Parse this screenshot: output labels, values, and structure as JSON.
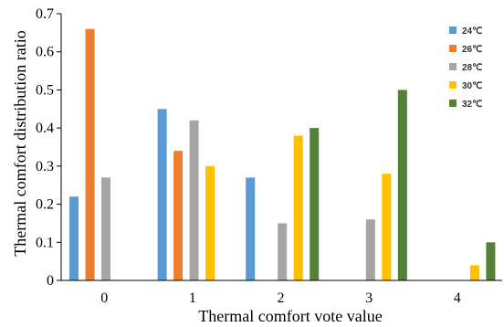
{
  "chart_data": {
    "type": "bar",
    "categories": [
      "0",
      "1",
      "2",
      "3",
      "4"
    ],
    "series": [
      {
        "name": "24℃",
        "color": "#5b9bd5",
        "values": [
          0.22,
          0.45,
          0.27,
          null,
          null
        ]
      },
      {
        "name": "26℃",
        "color": "#ed7d31",
        "values": [
          0.66,
          0.34,
          null,
          null,
          null
        ]
      },
      {
        "name": "28℃",
        "color": "#a5a5a5",
        "values": [
          0.27,
          0.42,
          0.15,
          0.16,
          null
        ]
      },
      {
        "name": "30℃",
        "color": "#ffc000",
        "values": [
          null,
          0.3,
          0.38,
          0.28,
          0.04
        ]
      },
      {
        "name": "32℃",
        "color": "#548235",
        "values": [
          null,
          null,
          0.4,
          0.5,
          0.1
        ]
      }
    ],
    "xlabel": "Thermal comfort vote value",
    "ylabel": "Thermal comfort distribution ratio",
    "ylim": [
      0,
      0.7
    ],
    "yticks": [
      "0",
      "0.1",
      "0.2",
      "0.3",
      "0.4",
      "0.5",
      "0.6",
      "0.7"
    ],
    "legend_position": "top-right",
    "grid": false
  }
}
